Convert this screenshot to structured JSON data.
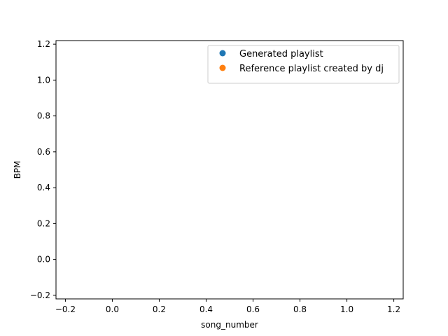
{
  "chart_data": {
    "type": "scatter",
    "title": "",
    "xlabel": "song_number",
    "ylabel": "BPM",
    "xlim": [
      -0.24,
      1.24
    ],
    "ylim": [
      -0.22,
      1.22
    ],
    "xticks": [
      -0.2,
      0.0,
      0.2,
      0.4,
      0.6,
      0.8,
      1.0,
      1.2
    ],
    "xtick_labels": [
      "−0.2",
      "0.0",
      "0.2",
      "0.4",
      "0.6",
      "0.8",
      "1.0",
      "1.2"
    ],
    "yticks": [
      -0.2,
      0.0,
      0.2,
      0.4,
      0.6,
      0.8,
      1.0,
      1.2
    ],
    "ytick_labels": [
      "−0.2",
      "0.0",
      "0.2",
      "0.4",
      "0.6",
      "0.8",
      "1.0",
      "1.2"
    ],
    "grid": false,
    "legend_position": "top-right",
    "series": [
      {
        "name": "Generated playlist",
        "color": "#1f77b4",
        "x": [],
        "y": []
      },
      {
        "name": "Reference playlist created by dj",
        "color": "#ff7f0e",
        "x": [],
        "y": []
      }
    ]
  }
}
